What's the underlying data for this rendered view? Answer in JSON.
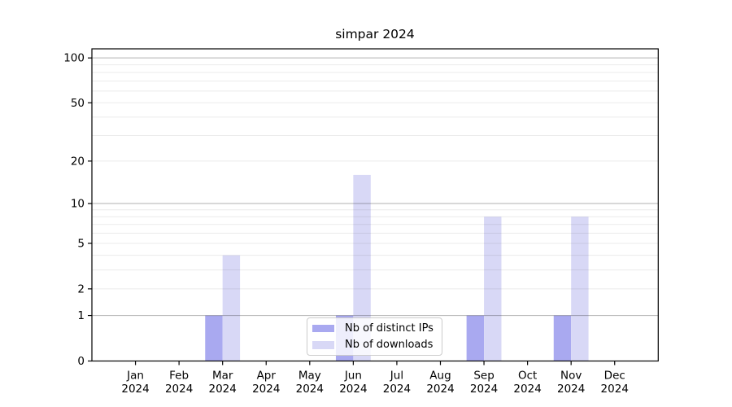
{
  "chart_data": {
    "type": "bar",
    "title": "simpar 2024",
    "categories": [
      "Jan 2024",
      "Feb 2024",
      "Mar 2024",
      "Apr 2024",
      "May 2024",
      "Jun 2024",
      "Jul 2024",
      "Aug 2024",
      "Sep 2024",
      "Oct 2024",
      "Nov 2024",
      "Dec 2024"
    ],
    "series": [
      {
        "name": "Nb of distinct IPs",
        "color": "#a9a9f0",
        "values": [
          0,
          0,
          1,
          0,
          0,
          1,
          0,
          0,
          1,
          0,
          1,
          0
        ]
      },
      {
        "name": "Nb of downloads",
        "color": "#d8d8f6",
        "values": [
          0,
          0,
          4,
          0,
          0,
          16,
          0,
          0,
          8,
          0,
          8,
          0
        ]
      }
    ],
    "yscale": "log1p",
    "yticks": [
      0,
      1,
      2,
      5,
      10,
      20,
      50,
      100
    ],
    "ylim": [
      0,
      115
    ],
    "xlabel": "",
    "ylabel": "",
    "grid": "horizontal",
    "legend_position": "lower center",
    "colors": {
      "axis": "#000000",
      "major_grid": "rgba(0,0,0,0.30)",
      "minor_grid": "rgba(0,0,0,0.08)",
      "legend_border": "#cccccc",
      "text": "#000000"
    }
  }
}
